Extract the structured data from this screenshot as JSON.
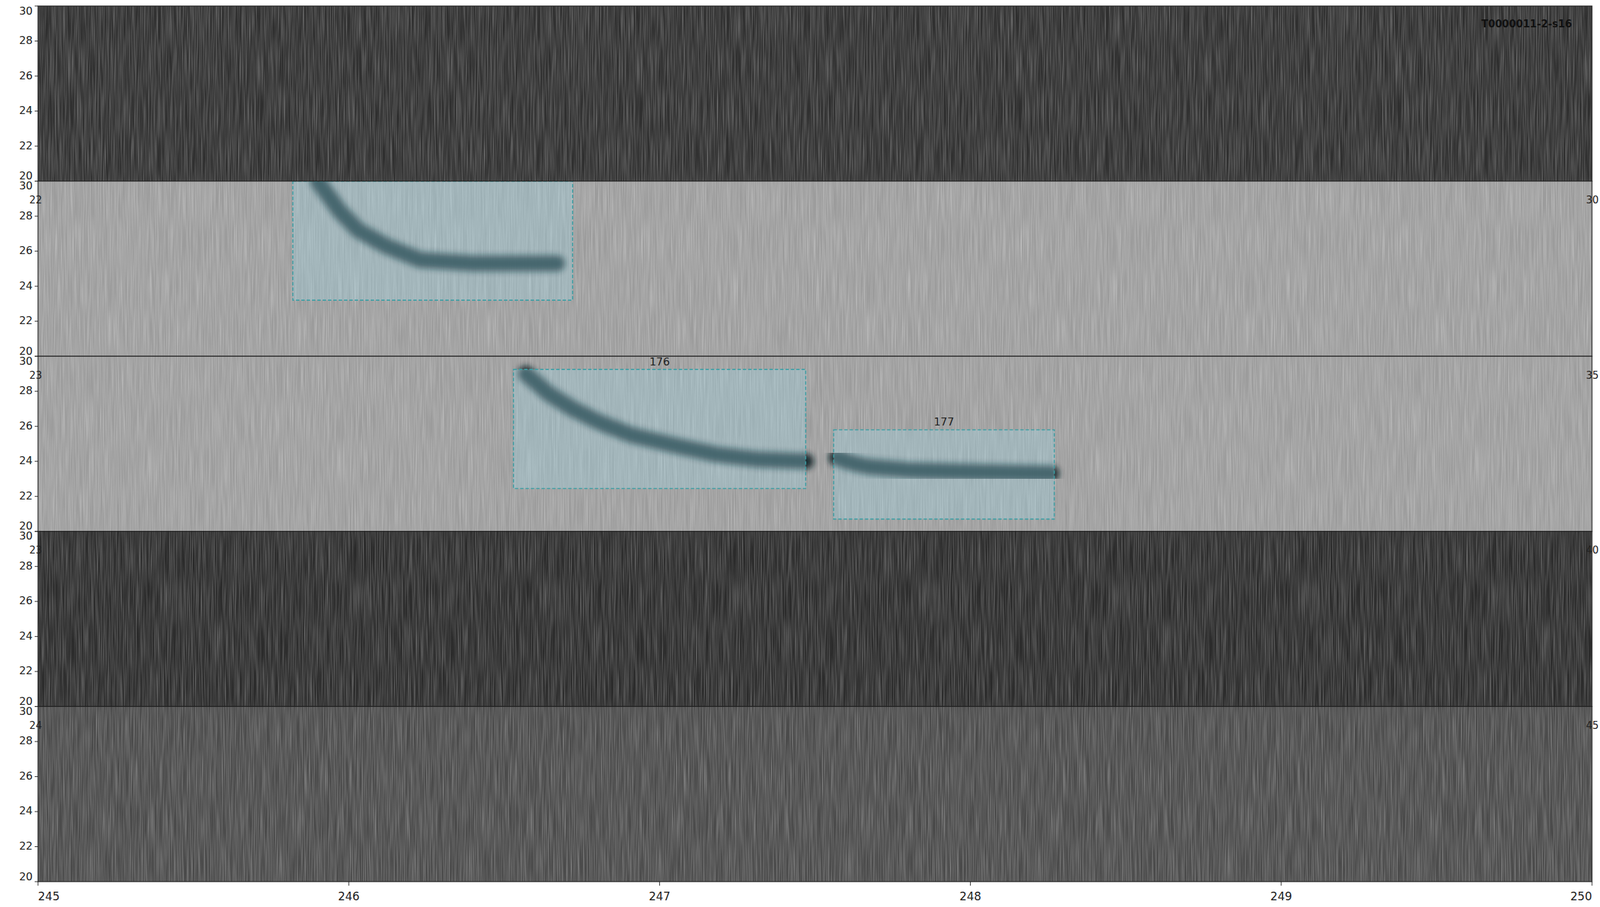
{
  "chart_data": {
    "type": "spectrogram",
    "annotation": "T0000011-2-s16",
    "xlim": [
      245,
      250
    ],
    "xticks": [
      245,
      246,
      247,
      248,
      249,
      250
    ],
    "panels": [
      {
        "color": "#2f2f2f",
        "ylim": [
          20,
          30
        ],
        "yticks": [
          20,
          22,
          24,
          26,
          28,
          30
        ],
        "boxes": [],
        "traces": []
      },
      {
        "color": "#9c9c9c",
        "ylim": [
          20,
          30
        ],
        "yticks": [
          20,
          22,
          24,
          26,
          28,
          30
        ],
        "left_label": "22",
        "right_label": "30",
        "boxes": [
          {
            "x": [
              245.82,
              246.72
            ],
            "y": [
              23.2,
              30
            ]
          }
        ],
        "traces": [
          {
            "x": [
              245.9,
              245.97,
              246.03,
              246.12,
              246.23,
              246.4,
              246.55,
              246.67
            ],
            "y": [
              30,
              28.3,
              27.2,
              26.3,
              25.5,
              25.3,
              25.3,
              25.3
            ]
          }
        ]
      },
      {
        "color": "#9c9c9c",
        "ylim": [
          20,
          30
        ],
        "yticks": [
          20,
          22,
          24,
          26,
          28,
          30
        ],
        "left_label": "23",
        "right_label": "35",
        "boxes": [
          {
            "label": "176",
            "x": [
              246.53,
              247.47
            ],
            "y": [
              22.45,
              29.25
            ]
          },
          {
            "label": "177",
            "x": [
              247.56,
              248.27
            ],
            "y": [
              20.7,
              25.8
            ]
          }
        ],
        "traces": [
          {
            "x": [
              246.57,
              246.64,
              246.72,
              246.81,
              246.91,
              247.05,
              247.18,
              247.32,
              247.47
            ],
            "y": [
              29.0,
              27.9,
              27.0,
              26.2,
              25.5,
              24.9,
              24.4,
              24.1,
              24.0
            ]
          },
          {
            "x": [
              247.57,
              247.62,
              247.67,
              247.8,
              248.0,
              248.26
            ],
            "y": [
              24.2,
              23.9,
              23.7,
              23.5,
              23.4,
              23.3
            ]
          }
        ]
      },
      {
        "color": "#2b2b2b",
        "ylim": [
          20,
          30
        ],
        "yticks": [
          20,
          22,
          24,
          26,
          28,
          30
        ],
        "left_label": "23",
        "right_label": "40",
        "boxes": [],
        "traces": []
      },
      {
        "color": "#4a4a4a",
        "ylim": [
          20,
          30
        ],
        "yticks": [
          20,
          22,
          24,
          26,
          28,
          30
        ],
        "left_label": "24",
        "right_label": "45",
        "boxes": [],
        "traces": []
      }
    ]
  }
}
